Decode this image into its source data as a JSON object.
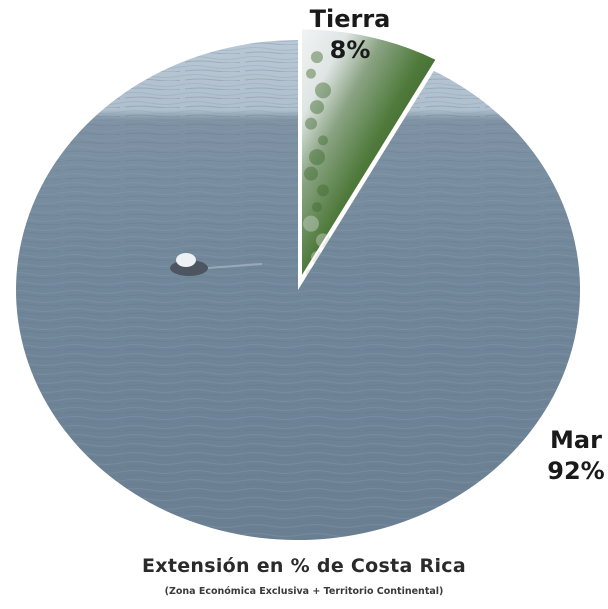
{
  "chart_data": {
    "type": "pie",
    "title": "Extensión en % de Costa Rica",
    "subtitle": "(Zona Económica Exclusiva + Territorio Continental)",
    "slices": [
      {
        "label": "Tierra",
        "value": 8,
        "value_label": "8%",
        "fill": "land-photo"
      },
      {
        "label": "Mar",
        "value": 92,
        "value_label": "92%",
        "fill": "sea-photo"
      }
    ],
    "colors": {
      "sea": "#6f8496",
      "sky": "#b7c6d3",
      "land": "#3f6a2e",
      "mist": "#e8ecee"
    }
  }
}
